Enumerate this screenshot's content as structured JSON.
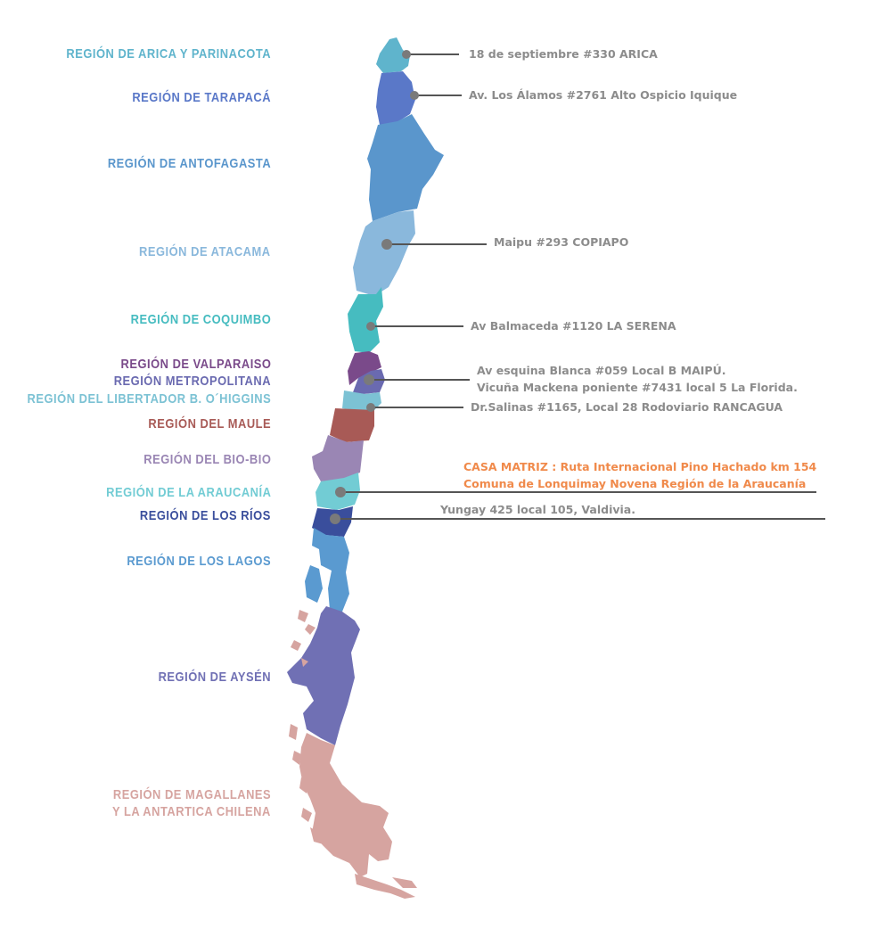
{
  "regions": [
    {
      "label": "REGIÓN DE ARICA Y PARINACOTA",
      "color": "#5fb4cc"
    },
    {
      "label": "REGIÓN DE TARAPACÁ",
      "color": "#5a78c8"
    },
    {
      "label": "REGIÓN DE ANTOFAGASTA",
      "color": "#5a96cc"
    },
    {
      "label": "REGIÓN DE ATACAMA",
      "color": "#8ab8dc"
    },
    {
      "label": "REGIÓN DE COQUIMBO",
      "color": "#46bcc0"
    },
    {
      "label": "REGIÓN DE VALPARAISO",
      "color": "#7a4a8a"
    },
    {
      "label": "REGIÓN METROPOLITANA",
      "color": "#6a6ab0"
    },
    {
      "label": "REGIÓN DEL LIBERTADOR B. O´HIGGINS",
      "color": "#7cc2d4"
    },
    {
      "label": "REGIÓN DEL MAULE",
      "color": "#a85a56"
    },
    {
      "label": "REGIÓN DEL BIO-BIO",
      "color": "#9a86b4"
    },
    {
      "label": "REGIÓN DE LA ARAUCANÍA",
      "color": "#72ccd4"
    },
    {
      "label": "REGIÓN DE LOS RÍOS",
      "color": "#3a4e9c"
    },
    {
      "label": "REGIÓN DE LOS LAGOS",
      "color": "#5a9ad0"
    },
    {
      "label": "REGIÓN DE AYSÉN",
      "color": "#7070b4"
    },
    {
      "label": "REGIÓN DE MAGALLANES",
      "color": "#d6a4a0"
    },
    {
      "label": "Y LA ANTARTICA CHILENA",
      "color": "#d6a4a0"
    }
  ],
  "addresses": {
    "arica": "18 de septiembre #330 ARICA",
    "iquique": "Av. Los Álamos #2761 Alto Ospicio Iquique",
    "copiapo": "Maipu #293 COPIAPO",
    "serena": "Av Balmaceda #1120 LA SERENA",
    "maipu": "Av esquina Blanca #059 Local B MAIPÚ.",
    "florida": "Vicuña Mackena poniente #7431 local 5 La Florida.",
    "rancagua": "Dr.Salinas #1165,  Local 28 Rodoviario RANCAGUA",
    "hq_line1": "CASA MATRIZ : Ruta Internacional Pino Hachado km 154",
    "hq_line2": "Comuna de Lonquimay Novena Región de la Araucanía",
    "valdivia": "Yungay 425 local 105, Valdivia."
  },
  "colors": {
    "address_text": "#8c8c8c",
    "hq_text": "#f08a4b",
    "leader_line": "#555555",
    "marker": "#7a7a7a"
  }
}
